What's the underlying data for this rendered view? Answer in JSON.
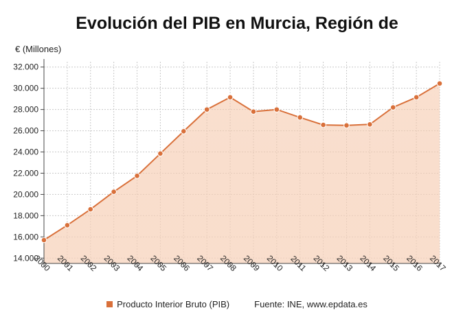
{
  "chart_data": {
    "type": "area",
    "title": "Evolución del PIB en Murcia, Región de",
    "ylabel": "€ (Millones)",
    "xlabel": "",
    "x": [
      "2000",
      "2001",
      "2002",
      "2003",
      "2004",
      "2005",
      "2006",
      "2007",
      "2008",
      "2009",
      "2010",
      "2011",
      "2012",
      "2013",
      "2014",
      "2015",
      "2016",
      "2017"
    ],
    "series": [
      {
        "name": "Producto Interior Bruto (PIB)",
        "values": [
          15700,
          17100,
          18600,
          20250,
          21750,
          23850,
          25950,
          28000,
          29150,
          27800,
          28000,
          27250,
          26550,
          26500,
          26600,
          28200,
          29150,
          30450
        ]
      }
    ],
    "yticks": [
      "14.000",
      "16.000",
      "18.000",
      "20.000",
      "22.000",
      "24.000",
      "26.000",
      "28.000",
      "30.000",
      "32.000"
    ],
    "ylim": [
      13500,
      32500
    ],
    "grid": true,
    "legend_position": "bottom"
  },
  "source": "Fuente: INE, www.epdata.es",
  "colors": {
    "series": "#d9703a",
    "fill_top": "#f5c6a8",
    "grid": "#c8c8c8"
  }
}
